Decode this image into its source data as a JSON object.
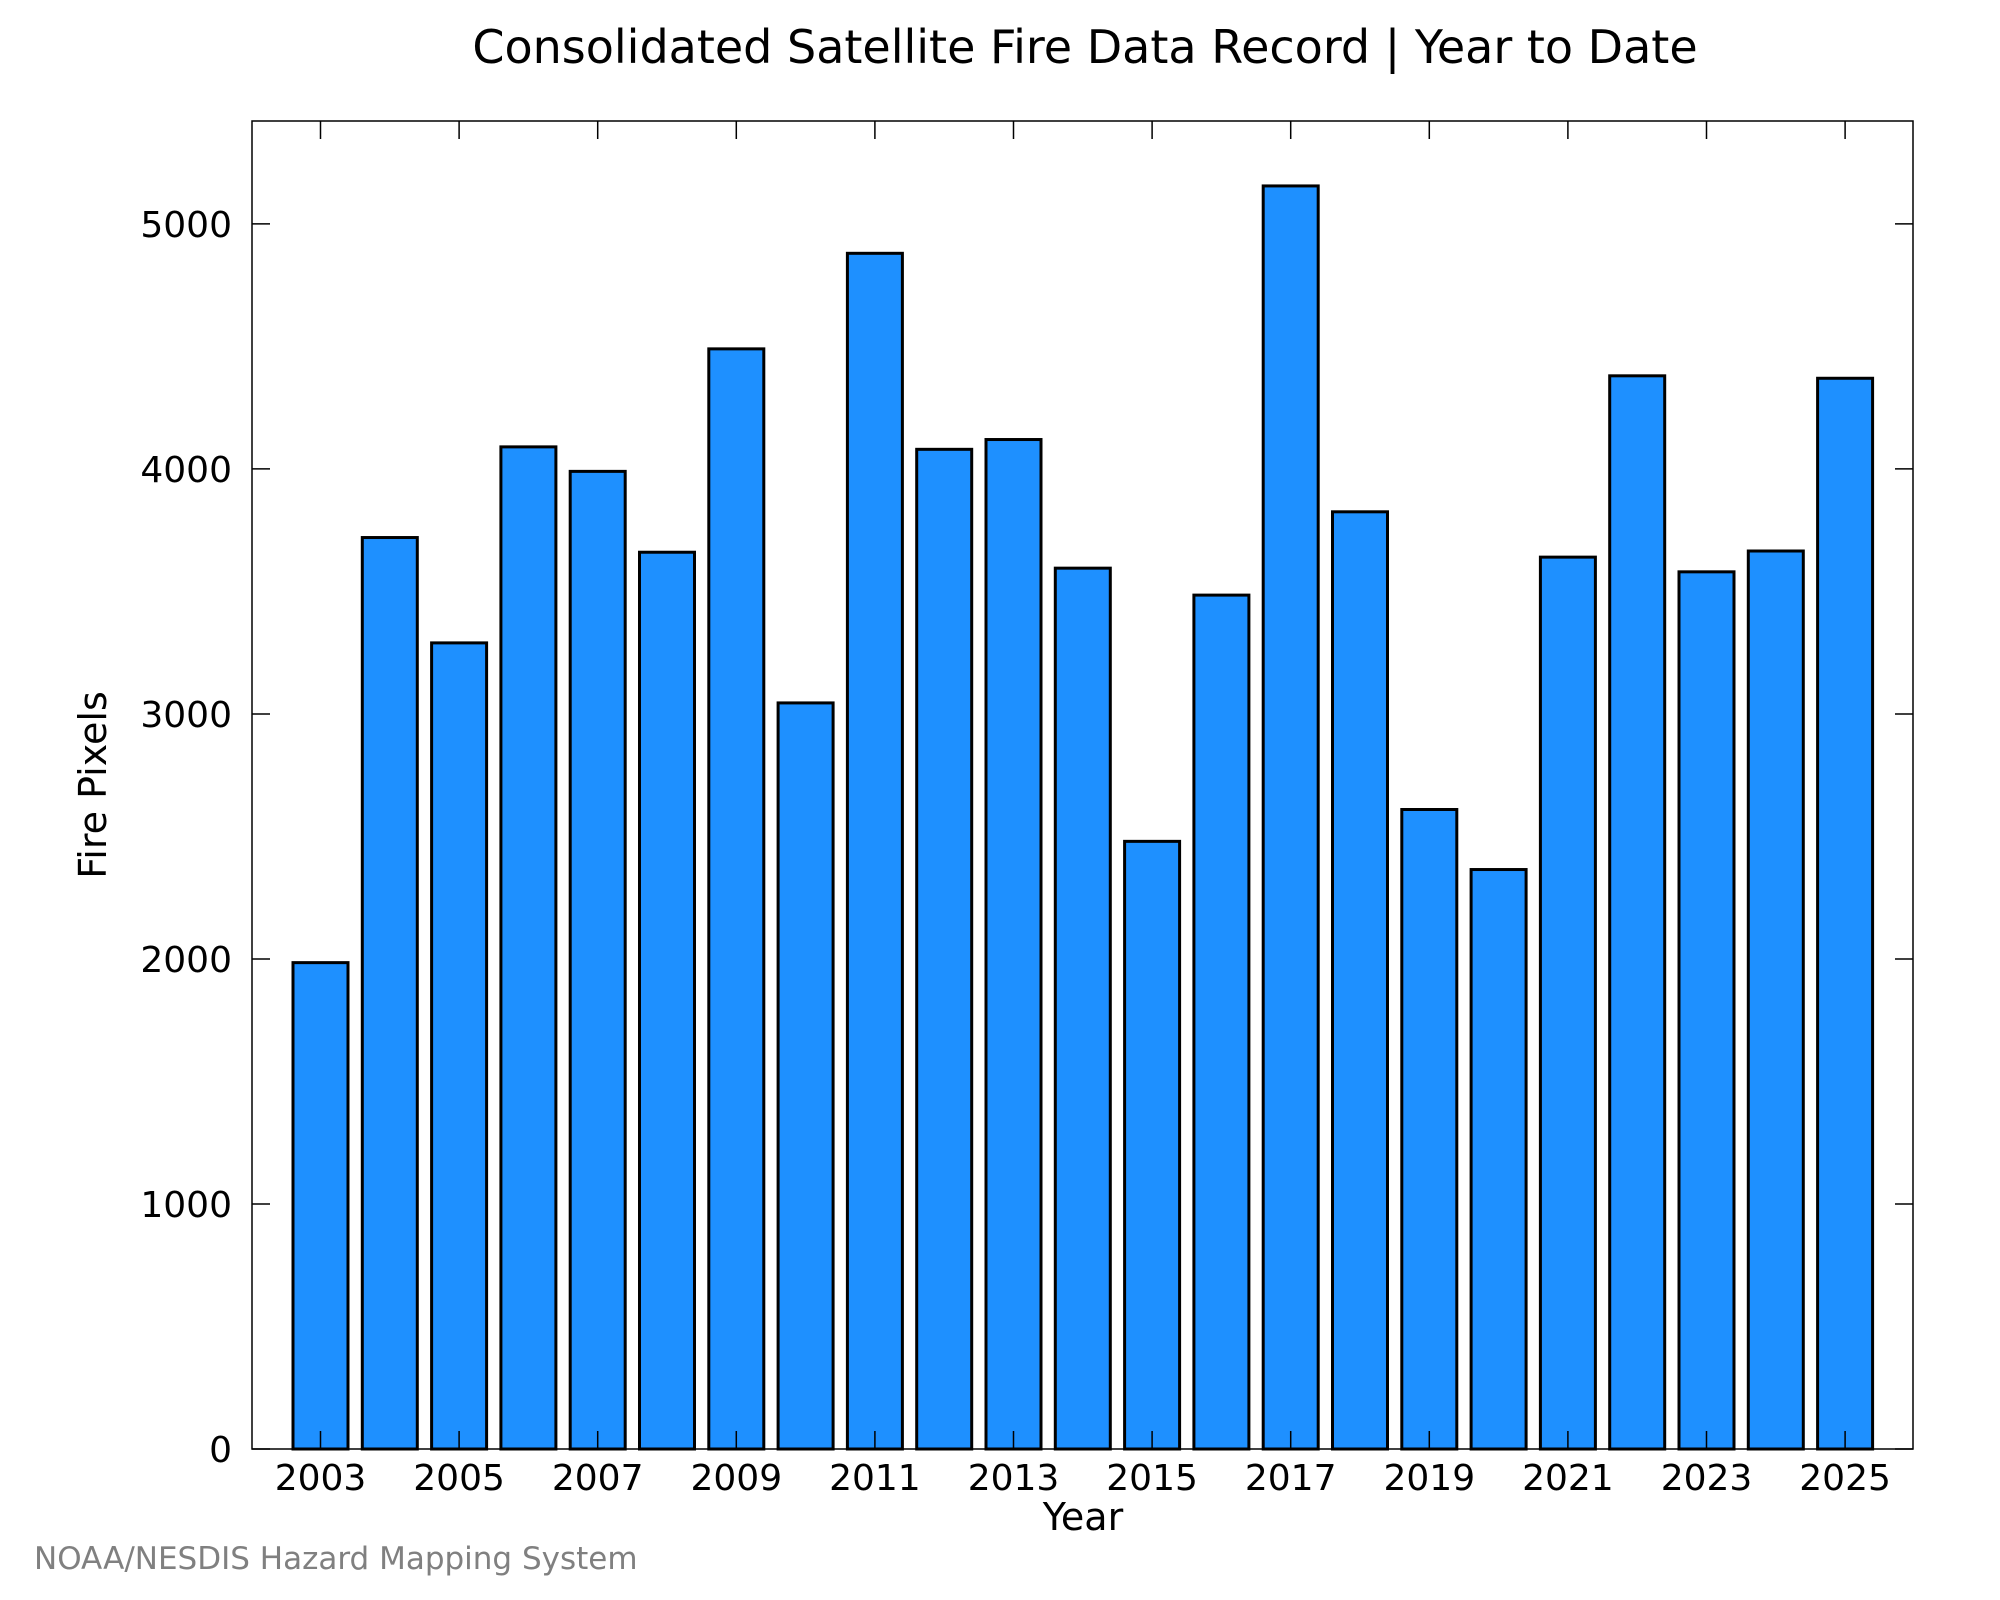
{
  "chart_data": {
    "type": "bar",
    "title": "Consolidated Satellite Fire Data Record | Year to Date",
    "xlabel": "Year",
    "ylabel": "Fire Pixels",
    "categories": [
      2003,
      2004,
      2005,
      2006,
      2007,
      2008,
      2009,
      2010,
      2011,
      2012,
      2013,
      2014,
      2015,
      2016,
      2017,
      2018,
      2019,
      2020,
      2021,
      2022,
      2023,
      2024,
      2025
    ],
    "values": [
      1985,
      3720,
      3290,
      4090,
      3990,
      3660,
      4490,
      3045,
      4880,
      4080,
      4120,
      3595,
      2480,
      3485,
      5155,
      3825,
      2610,
      2365,
      3640,
      4380,
      3580,
      3665,
      4370
    ],
    "ylim": [
      0,
      5420
    ],
    "yticks": [
      0,
      1000,
      2000,
      3000,
      4000,
      5000
    ],
    "xticks": [
      2003,
      2005,
      2007,
      2009,
      2011,
      2013,
      2015,
      2017,
      2019,
      2021,
      2023,
      2025
    ],
    "bar_color": "#1e90ff",
    "edge_color": "#000000",
    "grid": false,
    "legend": "none"
  },
  "footer": {
    "source": "NOAA/NESDIS Hazard Mapping System"
  }
}
